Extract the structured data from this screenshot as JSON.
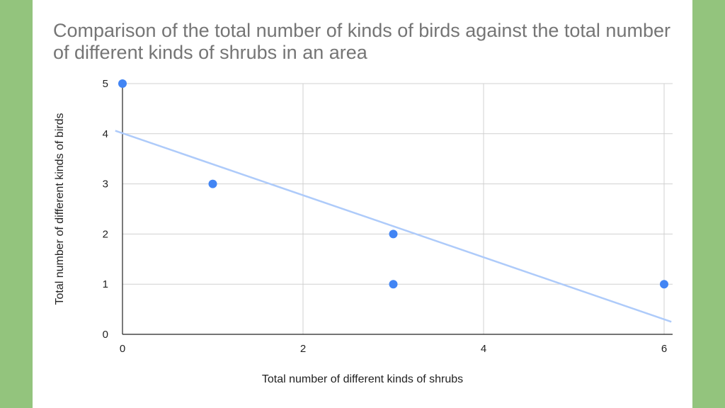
{
  "chart_data": {
    "type": "scatter",
    "title": "Comparison of the total number of kinds of birds against the total number of different kinds of shrubs in an area",
    "xlabel": "Total number of different kinds of shrubs",
    "ylabel": "Total number of different kinds of birds",
    "xlim": [
      0,
      6
    ],
    "ylim": [
      0,
      5
    ],
    "x_ticks": [
      0,
      2,
      4,
      6
    ],
    "y_ticks": [
      0,
      1,
      2,
      3,
      4,
      5
    ],
    "grid": true,
    "legend": "none",
    "points": [
      {
        "x": 0,
        "y": 5
      },
      {
        "x": 1,
        "y": 3
      },
      {
        "x": 3,
        "y": 2
      },
      {
        "x": 3,
        "y": 1
      },
      {
        "x": 6,
        "y": 1
      }
    ],
    "trendline": {
      "type": "linear",
      "x_start": -0.08,
      "y_start": 4.06,
      "x_end": 6.08,
      "y_end": 0.25
    },
    "colors": {
      "points": "#4285f4",
      "trendline": "#aecbfa",
      "grid": "#d0d0d0",
      "axis": "#222222",
      "title": "#757575",
      "border": "#93c47d"
    }
  }
}
